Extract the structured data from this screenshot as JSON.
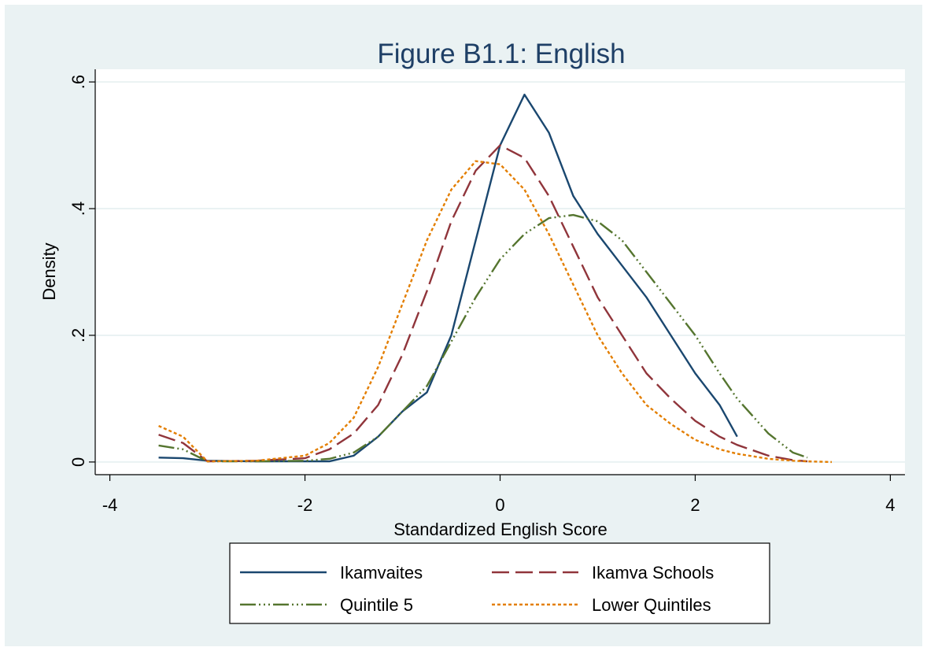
{
  "chart_data": {
    "type": "line",
    "title": "Figure B1.1: English",
    "xlabel": "Standardized English Score",
    "ylabel": "Density",
    "x": [
      -3.5,
      -3.25,
      -3,
      -2.5,
      -2,
      -1.75,
      -1.5,
      -1.25,
      -1,
      -0.75,
      -0.5,
      -0.25,
      0,
      0.25,
      0.5,
      0.75,
      1,
      1.25,
      1.5,
      1.75,
      2,
      2.25,
      2.43,
      2.75,
      3,
      3.15,
      3.4
    ],
    "series": [
      {
        "name": "Ikamvaites",
        "color": "#1a476f",
        "values": [
          0.007,
          0.006,
          0.002,
          0.001,
          0.001,
          0.001,
          0.01,
          0.04,
          0.08,
          0.11,
          0.2,
          0.35,
          0.5,
          0.58,
          0.52,
          0.42,
          0.36,
          0.31,
          0.26,
          0.2,
          0.14,
          0.09,
          0.04,
          null,
          null,
          null,
          null
        ]
      },
      {
        "name": "Ikamva Schools",
        "color": "#90353b",
        "values": [
          0.043,
          0.03,
          0.001,
          0.002,
          0.006,
          0.02,
          0.045,
          0.09,
          0.17,
          0.27,
          0.38,
          0.46,
          0.5,
          0.48,
          0.42,
          0.34,
          0.26,
          0.2,
          0.14,
          0.1,
          0.065,
          0.04,
          0.027,
          0.01,
          0.003,
          0.001,
          null
        ]
      },
      {
        "name": "Quintile 5",
        "color": "#55752f",
        "values": [
          0.026,
          0.02,
          0.001,
          0.001,
          0.002,
          0.005,
          0.015,
          0.04,
          0.08,
          0.12,
          0.19,
          0.26,
          0.32,
          0.36,
          0.385,
          0.39,
          0.38,
          0.35,
          0.3,
          0.25,
          0.2,
          0.14,
          0.1,
          0.045,
          0.015,
          0.007,
          null
        ]
      },
      {
        "name": "Lower Quintiles",
        "color": "#e37e00",
        "values": [
          0.057,
          0.04,
          0.001,
          0.002,
          0.01,
          0.03,
          0.07,
          0.15,
          0.25,
          0.35,
          0.43,
          0.475,
          0.47,
          0.43,
          0.36,
          0.28,
          0.2,
          0.14,
          0.09,
          0.06,
          0.035,
          0.02,
          0.013,
          0.005,
          0.002,
          0.001,
          0
        ]
      }
    ],
    "xlim": [
      -4.15,
      4.15
    ],
    "xticks": [
      -4,
      -2,
      0,
      2,
      4
    ],
    "ylim": [
      -0.02,
      0.62
    ],
    "yticks": [
      0,
      {
        "value": 0.2,
        "label": ".2"
      },
      {
        "value": 0.4,
        "label": ".4"
      },
      {
        "value": 0.6,
        "label": ".6"
      }
    ],
    "grid": true,
    "legend": "bottom"
  }
}
